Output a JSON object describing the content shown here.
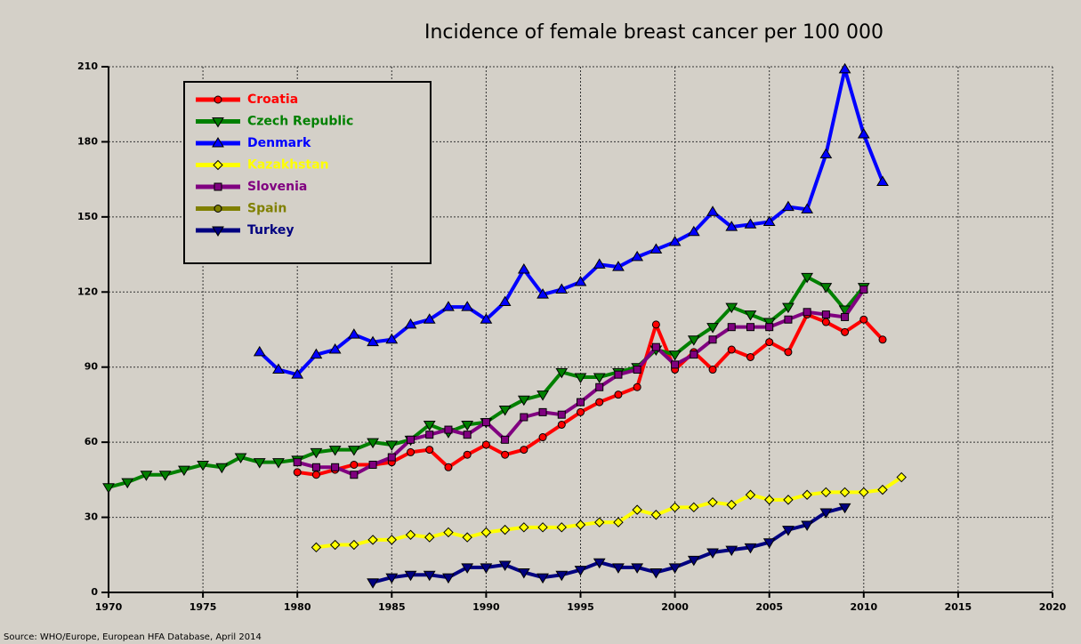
{
  "chart_data": {
    "type": "line",
    "title": "Incidence of female breast cancer per 100 000",
    "source": "Source: WHO/Europe, European HFA Database, April 2014",
    "x": [
      1970,
      1971,
      1972,
      1973,
      1974,
      1975,
      1976,
      1977,
      1978,
      1979,
      1980,
      1981,
      1982,
      1983,
      1984,
      1985,
      1986,
      1987,
      1988,
      1989,
      1990,
      1991,
      1992,
      1993,
      1994,
      1995,
      1996,
      1997,
      1998,
      1999,
      2000,
      2001,
      2002,
      2003,
      2004,
      2005,
      2006,
      2007,
      2008,
      2009,
      2010,
      2011,
      2012
    ],
    "xlim": [
      1970,
      2020
    ],
    "xticks": [
      1970,
      1975,
      1980,
      1985,
      1990,
      1995,
      2000,
      2005,
      2010,
      2015,
      2020
    ],
    "ylim": [
      0,
      210
    ],
    "yticks": [
      0,
      30,
      60,
      90,
      120,
      150,
      180,
      210
    ],
    "grid": true,
    "legend": "upper left",
    "series": [
      {
        "name": "Croatia",
        "color": "#ff0000",
        "marker": "circle",
        "values": [
          null,
          null,
          null,
          null,
          null,
          null,
          null,
          null,
          null,
          null,
          48,
          47,
          49,
          51,
          51,
          52,
          56,
          57,
          50,
          55,
          59,
          55,
          57,
          62,
          67,
          72,
          76,
          79,
          82,
          107,
          89,
          96,
          89,
          97,
          94,
          100,
          96,
          111,
          108,
          104,
          109,
          101,
          null
        ]
      },
      {
        "name": "Czech Republic",
        "color": "#008000",
        "marker": "triangle-down",
        "values": [
          42,
          44,
          47,
          47,
          49,
          51,
          50,
          54,
          52,
          52,
          53,
          56,
          57,
          57,
          60,
          59,
          61,
          67,
          64,
          67,
          68,
          73,
          77,
          79,
          88,
          86,
          86,
          88,
          90,
          97,
          95,
          101,
          106,
          114,
          111,
          108,
          114,
          126,
          122,
          113,
          122,
          null,
          null
        ]
      },
      {
        "name": "Denmark",
        "color": "#0000ff",
        "marker": "triangle-up",
        "values": [
          null,
          null,
          null,
          null,
          null,
          null,
          null,
          null,
          96,
          89,
          87,
          95,
          97,
          103,
          100,
          101,
          107,
          109,
          114,
          114,
          109,
          116,
          129,
          119,
          121,
          124,
          131,
          130,
          134,
          137,
          140,
          144,
          152,
          146,
          147,
          148,
          154,
          153,
          175,
          209,
          183,
          164,
          null
        ]
      },
      {
        "name": "Kazakhstan",
        "color": "#ffff00",
        "marker": "diamond",
        "values": [
          null,
          null,
          null,
          null,
          null,
          null,
          null,
          null,
          null,
          null,
          null,
          18,
          19,
          19,
          21,
          21,
          23,
          22,
          24,
          22,
          24,
          25,
          26,
          26,
          26,
          27,
          28,
          28,
          33,
          31,
          34,
          34,
          36,
          35,
          39,
          37,
          37,
          39,
          40,
          40,
          40,
          41,
          46
        ]
      },
      {
        "name": "Slovenia",
        "color": "#800080",
        "marker": "square",
        "values": [
          null,
          null,
          null,
          null,
          null,
          null,
          null,
          null,
          null,
          null,
          52,
          50,
          50,
          47,
          51,
          54,
          61,
          63,
          65,
          63,
          68,
          61,
          70,
          72,
          71,
          76,
          82,
          87,
          89,
          98,
          91,
          95,
          101,
          106,
          106,
          106,
          109,
          112,
          111,
          110,
          121,
          null,
          null
        ]
      },
      {
        "name": "Spain",
        "color": "#808000",
        "marker": "circle",
        "values": [
          null,
          null,
          null,
          null,
          null,
          null,
          null,
          null,
          null,
          null,
          null,
          null,
          null,
          null,
          null,
          null,
          null,
          null,
          null,
          null,
          null,
          null,
          null,
          null,
          null,
          null,
          null,
          null,
          null,
          null,
          null,
          null,
          null,
          null,
          null,
          null,
          null,
          null,
          null,
          null,
          null,
          null,
          null
        ]
      },
      {
        "name": "Turkey",
        "color": "#000080",
        "marker": "triangle-down",
        "values": [
          null,
          null,
          null,
          null,
          null,
          null,
          null,
          null,
          null,
          null,
          null,
          null,
          null,
          null,
          4,
          6,
          7,
          7,
          6,
          10,
          10,
          11,
          8,
          6,
          7,
          9,
          12,
          10,
          10,
          8,
          10,
          13,
          16,
          17,
          18,
          20,
          25,
          27,
          32,
          34,
          null,
          null,
          null
        ]
      }
    ]
  }
}
